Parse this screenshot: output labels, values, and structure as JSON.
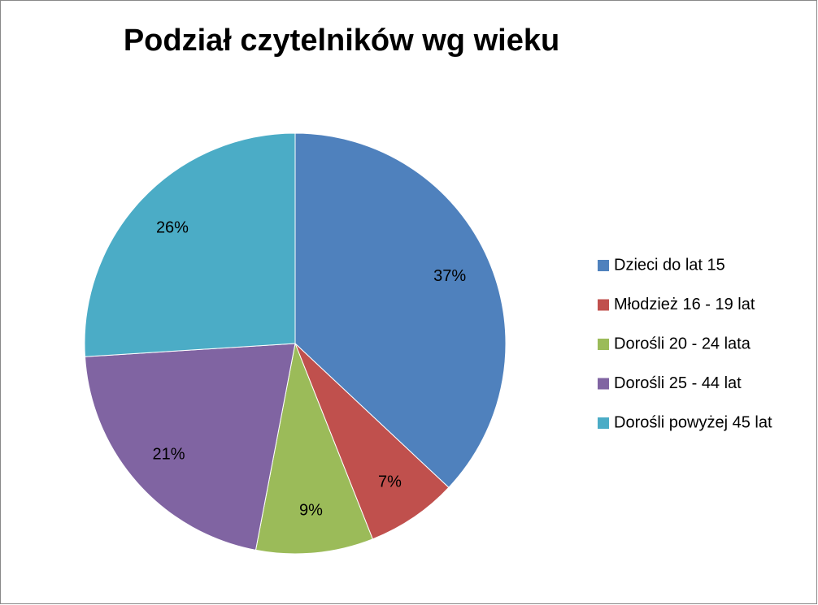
{
  "chart_data": {
    "type": "pie",
    "title": "Podział czytelników wg wieku",
    "categories": [
      "Dzieci do lat 15",
      "Młodzież 16 - 19 lat",
      "Dorośli 20 - 24 lata",
      "Dorośli 25 - 44 lat",
      "Dorośli powyżej 45 lat"
    ],
    "values": [
      37,
      7,
      9,
      21,
      26
    ],
    "value_labels": [
      "37%",
      "7%",
      "9%",
      "21%",
      "26%"
    ],
    "colors": [
      "#4f81bd",
      "#c0504d",
      "#9bbb59",
      "#8064a2",
      "#4bacc6"
    ],
    "legend": "right"
  }
}
